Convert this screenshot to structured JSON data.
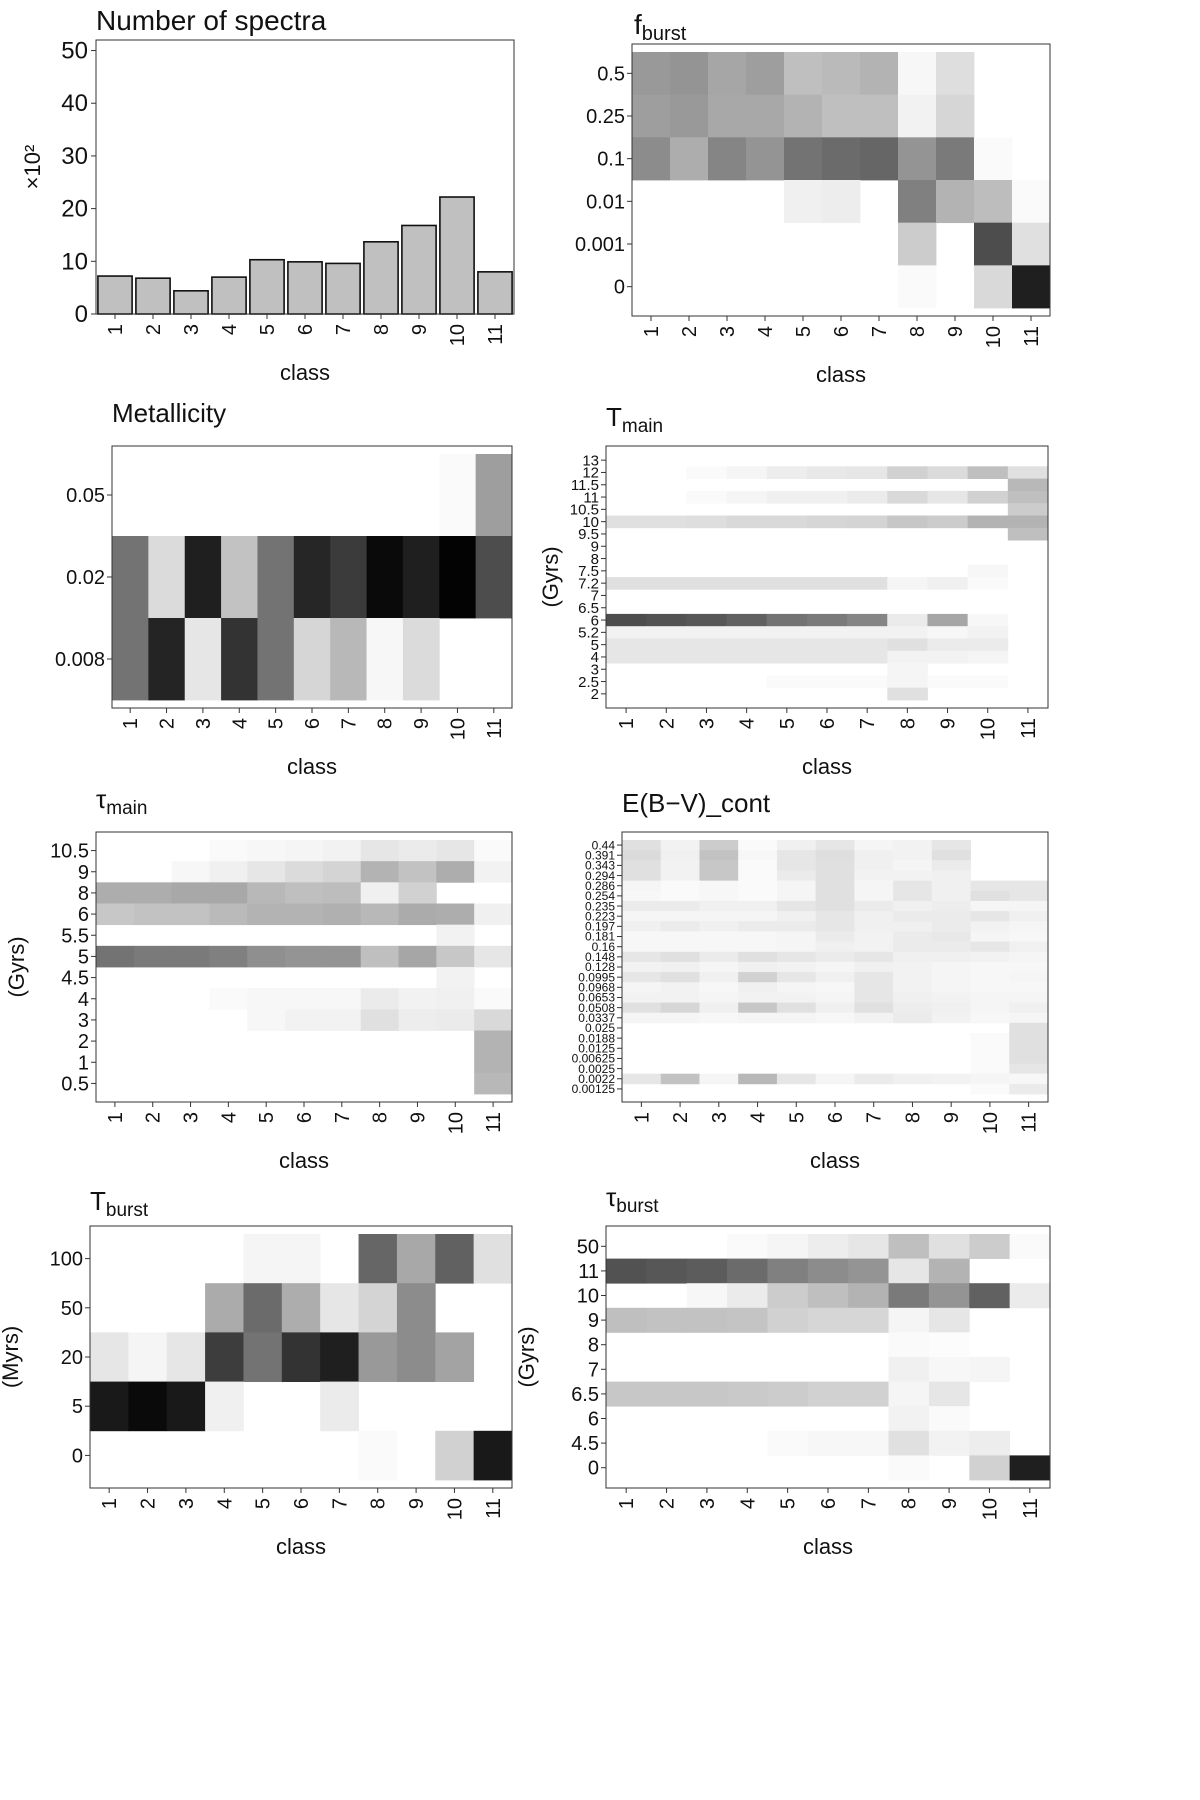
{
  "chart_data": [
    {
      "id": "num_spectra",
      "type": "bar",
      "title": "Number of spectra",
      "xlabel": "class",
      "ylabel": "×10²",
      "ylim": [
        0,
        52
      ],
      "yticks": [
        0,
        10,
        20,
        30,
        40,
        50
      ],
      "categories": [
        "1",
        "2",
        "3",
        "4",
        "5",
        "6",
        "7",
        "8",
        "9",
        "10",
        "11"
      ],
      "values": [
        7.2,
        6.8,
        4.4,
        7.0,
        10.3,
        9.9,
        9.6,
        13.7,
        16.8,
        22.2,
        8.0
      ],
      "bar_color": "#c0c0c0"
    },
    {
      "id": "f_burst",
      "type": "heatmap",
      "title": "f",
      "title_sub": "burst",
      "xlabel": "class",
      "ylabel": "",
      "categories": [
        "1",
        "2",
        "3",
        "4",
        "5",
        "6",
        "7",
        "8",
        "9",
        "10",
        "11"
      ],
      "rows": [
        "0.5",
        "0.25",
        "0.1",
        "0.01",
        "0.001",
        "0"
      ],
      "values": [
        [
          0.4,
          0.42,
          0.35,
          0.38,
          0.25,
          0.27,
          0.3,
          0.03,
          0.13,
          0.0,
          0.0
        ],
        [
          0.38,
          0.4,
          0.34,
          0.34,
          0.3,
          0.25,
          0.25,
          0.05,
          0.16,
          0.0,
          0.0
        ],
        [
          0.45,
          0.32,
          0.48,
          0.42,
          0.55,
          0.58,
          0.6,
          0.42,
          0.52,
          0.02,
          0.0
        ],
        [
          0.0,
          0.0,
          0.0,
          0.0,
          0.06,
          0.07,
          0.0,
          0.5,
          0.3,
          0.26,
          0.02
        ],
        [
          0.0,
          0.0,
          0.0,
          0.0,
          0.0,
          0.0,
          0.0,
          0.2,
          0.0,
          0.7,
          0.12
        ],
        [
          0.0,
          0.0,
          0.0,
          0.0,
          0.0,
          0.0,
          0.0,
          0.02,
          0.0,
          0.15,
          0.88
        ]
      ]
    },
    {
      "id": "metallicity",
      "type": "heatmap",
      "title": "Metallicity",
      "title_sub": "",
      "xlabel": "class",
      "ylabel": "",
      "categories": [
        "1",
        "2",
        "3",
        "4",
        "5",
        "6",
        "7",
        "8",
        "9",
        "10",
        "11"
      ],
      "rows": [
        "0.05",
        "0.02",
        "0.008"
      ],
      "values": [
        [
          0.0,
          0.0,
          0.0,
          0.0,
          0.0,
          0.0,
          0.0,
          0.0,
          0.0,
          0.02,
          0.38
        ],
        [
          0.55,
          0.14,
          0.88,
          0.24,
          0.55,
          0.85,
          0.77,
          0.96,
          0.88,
          0.99,
          0.7
        ],
        [
          0.55,
          0.86,
          0.1,
          0.8,
          0.55,
          0.16,
          0.28,
          0.03,
          0.14,
          0.0,
          0.0
        ]
      ]
    },
    {
      "id": "t_main",
      "type": "heatmap",
      "title": "T",
      "title_sub": "main",
      "xlabel": "class",
      "ylabel": "(Gyrs)",
      "categories": [
        "1",
        "2",
        "3",
        "4",
        "5",
        "6",
        "7",
        "8",
        "9",
        "10",
        "11"
      ],
      "rows": [
        "13",
        "12",
        "11.5",
        "11",
        "10.5",
        "10",
        "9.5",
        "9",
        "8",
        "7.5",
        "7.2",
        "7",
        "6.5",
        "6",
        "5.2",
        "5",
        "4",
        "3",
        "2.5",
        "2"
      ],
      "values": [
        [
          0,
          0,
          0,
          0,
          0,
          0,
          0,
          0,
          0,
          0,
          0
        ],
        [
          0,
          0,
          0.02,
          0.04,
          0.07,
          0.09,
          0.1,
          0.18,
          0.14,
          0.25,
          0.12
        ],
        [
          0,
          0,
          0,
          0,
          0,
          0,
          0,
          0,
          0,
          0,
          0.28
        ],
        [
          0,
          0,
          0.02,
          0.04,
          0.06,
          0.06,
          0.08,
          0.15,
          0.1,
          0.18,
          0.25
        ],
        [
          0,
          0,
          0,
          0,
          0,
          0,
          0,
          0,
          0,
          0,
          0.2
        ],
        [
          0.12,
          0.12,
          0.13,
          0.15,
          0.15,
          0.16,
          0.17,
          0.22,
          0.2,
          0.3,
          0.3
        ],
        [
          0,
          0,
          0,
          0,
          0,
          0,
          0,
          0,
          0,
          0,
          0.25
        ],
        [
          0,
          0,
          0,
          0,
          0,
          0,
          0,
          0,
          0,
          0,
          0
        ],
        [
          0,
          0,
          0,
          0,
          0,
          0,
          0,
          0,
          0,
          0,
          0
        ],
        [
          0,
          0,
          0,
          0,
          0,
          0,
          0,
          0,
          0,
          0.03,
          0
        ],
        [
          0.12,
          0.12,
          0.12,
          0.12,
          0.12,
          0.12,
          0.12,
          0.04,
          0.06,
          0.02,
          0
        ],
        [
          0,
          0,
          0,
          0,
          0,
          0,
          0,
          0,
          0,
          0,
          0
        ],
        [
          0,
          0,
          0,
          0,
          0,
          0,
          0,
          0,
          0,
          0,
          0
        ],
        [
          0.7,
          0.68,
          0.66,
          0.62,
          0.55,
          0.52,
          0.48,
          0.08,
          0.35,
          0.03,
          0
        ],
        [
          0.05,
          0.05,
          0.05,
          0.05,
          0.05,
          0.05,
          0.05,
          0.05,
          0.03,
          0.05,
          0
        ],
        [
          0.1,
          0.1,
          0.1,
          0.1,
          0.1,
          0.1,
          0.1,
          0.12,
          0.08,
          0.08,
          0
        ],
        [
          0.1,
          0.1,
          0.1,
          0.1,
          0.1,
          0.1,
          0.1,
          0.05,
          0.05,
          0.04,
          0
        ],
        [
          0,
          0,
          0,
          0,
          0,
          0,
          0,
          0.04,
          0,
          0,
          0
        ],
        [
          0,
          0,
          0,
          0,
          0.02,
          0.02,
          0.02,
          0.04,
          0.02,
          0.02,
          0
        ],
        [
          0,
          0,
          0,
          0,
          0,
          0,
          0,
          0.12,
          0,
          0,
          0
        ]
      ]
    },
    {
      "id": "tau_main",
      "type": "heatmap",
      "title": "τ",
      "title_sub": "main",
      "xlabel": "class",
      "ylabel": "(Gyrs)",
      "categories": [
        "1",
        "2",
        "3",
        "4",
        "5",
        "6",
        "7",
        "8",
        "9",
        "10",
        "11"
      ],
      "rows": [
        "10.5",
        "9",
        "8",
        "6",
        "5.5",
        "5",
        "4.5",
        "4",
        "3",
        "2",
        "1",
        "0.5"
      ],
      "values": [
        [
          0,
          0,
          0,
          0.02,
          0.03,
          0.04,
          0.05,
          0.1,
          0.08,
          0.1,
          0.02
        ],
        [
          0,
          0,
          0.03,
          0.06,
          0.1,
          0.14,
          0.17,
          0.3,
          0.24,
          0.32,
          0.05
        ],
        [
          0.32,
          0.32,
          0.34,
          0.34,
          0.28,
          0.25,
          0.26,
          0.06,
          0.18,
          0.0,
          0.0
        ],
        [
          0.22,
          0.24,
          0.24,
          0.27,
          0.3,
          0.3,
          0.31,
          0.28,
          0.33,
          0.32,
          0.06
        ],
        [
          0,
          0,
          0,
          0,
          0,
          0,
          0,
          0,
          0,
          0.05,
          0
        ],
        [
          0.55,
          0.52,
          0.52,
          0.5,
          0.44,
          0.42,
          0.42,
          0.25,
          0.35,
          0.22,
          0.1
        ],
        [
          0,
          0,
          0,
          0,
          0,
          0,
          0,
          0,
          0,
          0.05,
          0
        ],
        [
          0,
          0,
          0,
          0.02,
          0.03,
          0.03,
          0.03,
          0.08,
          0.05,
          0.06,
          0.02
        ],
        [
          0,
          0,
          0,
          0,
          0.03,
          0.05,
          0.05,
          0.12,
          0.07,
          0.08,
          0.15
        ],
        [
          0,
          0,
          0,
          0,
          0,
          0,
          0,
          0,
          0,
          0,
          0.3
        ],
        [
          0,
          0,
          0,
          0,
          0,
          0,
          0,
          0,
          0,
          0,
          0.3
        ],
        [
          0,
          0,
          0,
          0,
          0,
          0,
          0,
          0,
          0,
          0,
          0.28
        ]
      ]
    },
    {
      "id": "ebv_cont",
      "type": "heatmap",
      "title": "E(B−V)_cont",
      "title_sub": "",
      "xlabel": "class",
      "ylabel": "",
      "categories": [
        "1",
        "2",
        "3",
        "4",
        "5",
        "6",
        "7",
        "8",
        "9",
        "10",
        "11"
      ],
      "rows": [
        "0.44",
        "0.391",
        "0.343",
        "0.294",
        "0.286",
        "0.254",
        "0.235",
        "0.223",
        "0.197",
        "0.181",
        "0.16",
        "0.148",
        "0.128",
        "0.0995",
        "0.0968",
        "0.0653",
        "0.0508",
        "0.0337",
        "0.025",
        "0.0188",
        "0.0125",
        "0.00625",
        "0.0025",
        "0.0022",
        "0.00125"
      ],
      "values": [
        [
          0.12,
          0.05,
          0.2,
          0.02,
          0.06,
          0.1,
          0.04,
          0.05,
          0.1,
          0,
          0
        ],
        [
          0.14,
          0.06,
          0.24,
          0.03,
          0.1,
          0.13,
          0.06,
          0.05,
          0.12,
          0,
          0
        ],
        [
          0.12,
          0.05,
          0.22,
          0.02,
          0.1,
          0.12,
          0.06,
          0.04,
          0.08,
          0,
          0
        ],
        [
          0.12,
          0.05,
          0.22,
          0.02,
          0.08,
          0.12,
          0.05,
          0.05,
          0.06,
          0,
          0
        ],
        [
          0.04,
          0.02,
          0.03,
          0.02,
          0.04,
          0.12,
          0.04,
          0.1,
          0.06,
          0.1,
          0.1
        ],
        [
          0.03,
          0.02,
          0.03,
          0.02,
          0.04,
          0.12,
          0.04,
          0.1,
          0.06,
          0.12,
          0.1
        ],
        [
          0.08,
          0.08,
          0.06,
          0.06,
          0.1,
          0.12,
          0.08,
          0.06,
          0.07,
          0.04,
          0.04
        ],
        [
          0.04,
          0.04,
          0.04,
          0.04,
          0.06,
          0.1,
          0.06,
          0.08,
          0.08,
          0.1,
          0.06
        ],
        [
          0.06,
          0.08,
          0.06,
          0.08,
          0.08,
          0.1,
          0.06,
          0.06,
          0.08,
          0.05,
          0.04
        ],
        [
          0.03,
          0.03,
          0.03,
          0.03,
          0.04,
          0.08,
          0.05,
          0.08,
          0.09,
          0.04,
          0.03
        ],
        [
          0.03,
          0.03,
          0.03,
          0.03,
          0.04,
          0.06,
          0.05,
          0.08,
          0.08,
          0.1,
          0.06
        ],
        [
          0.1,
          0.12,
          0.08,
          0.12,
          0.1,
          0.08,
          0.1,
          0.06,
          0.06,
          0.05,
          0.04
        ],
        [
          0.05,
          0.06,
          0.04,
          0.06,
          0.05,
          0.04,
          0.06,
          0.05,
          0.04,
          0.03,
          0.03
        ],
        [
          0.1,
          0.12,
          0.06,
          0.18,
          0.1,
          0.06,
          0.1,
          0.05,
          0.04,
          0.03,
          0.04
        ],
        [
          0.04,
          0.05,
          0.03,
          0.06,
          0.04,
          0.03,
          0.1,
          0.05,
          0.04,
          0.03,
          0.03
        ],
        [
          0.05,
          0.05,
          0.04,
          0.05,
          0.05,
          0.04,
          0.1,
          0.06,
          0.05,
          0.04,
          0.04
        ],
        [
          0.12,
          0.16,
          0.06,
          0.22,
          0.12,
          0.06,
          0.12,
          0.07,
          0.06,
          0.04,
          0.06
        ],
        [
          0.04,
          0.04,
          0.03,
          0.04,
          0.04,
          0.03,
          0.05,
          0.08,
          0.05,
          0.03,
          0.04
        ],
        [
          0,
          0,
          0,
          0,
          0,
          0,
          0,
          0,
          0,
          0,
          0.12
        ],
        [
          0,
          0,
          0,
          0,
          0,
          0,
          0,
          0,
          0,
          0.02,
          0.12
        ],
        [
          0,
          0,
          0,
          0,
          0,
          0,
          0,
          0,
          0,
          0.02,
          0.12
        ],
        [
          0,
          0,
          0,
          0,
          0,
          0,
          0,
          0,
          0,
          0.02,
          0.12
        ],
        [
          0,
          0,
          0,
          0,
          0,
          0,
          0,
          0,
          0,
          0.02,
          0.1
        ],
        [
          0.1,
          0.24,
          0.04,
          0.28,
          0.1,
          0.04,
          0.08,
          0.06,
          0.05,
          0.04,
          0.03
        ],
        [
          0,
          0,
          0,
          0,
          0,
          0,
          0,
          0,
          0,
          0.02,
          0.08
        ]
      ]
    },
    {
      "id": "t_burst",
      "type": "heatmap",
      "title": "T",
      "title_sub": "burst",
      "xlabel": "class",
      "ylabel": "(Myrs)",
      "categories": [
        "1",
        "2",
        "3",
        "4",
        "5",
        "6",
        "7",
        "8",
        "9",
        "10",
        "11"
      ],
      "rows": [
        "100",
        "50",
        "20",
        "5",
        "0"
      ],
      "values": [
        [
          0.0,
          0.0,
          0.0,
          0.0,
          0.04,
          0.04,
          0.0,
          0.6,
          0.34,
          0.62,
          0.12
        ],
        [
          0.0,
          0.0,
          0.0,
          0.33,
          0.58,
          0.32,
          0.1,
          0.17,
          0.45,
          0.0,
          0.0
        ],
        [
          0.1,
          0.04,
          0.1,
          0.76,
          0.55,
          0.8,
          0.88,
          0.4,
          0.45,
          0.36,
          0.0
        ],
        [
          0.9,
          0.96,
          0.9,
          0.06,
          0.0,
          0.0,
          0.08,
          0.0,
          0.0,
          0.0,
          0.0
        ],
        [
          0.0,
          0.0,
          0.0,
          0.0,
          0.0,
          0.0,
          0.0,
          0.02,
          0.0,
          0.18,
          0.9
        ]
      ]
    },
    {
      "id": "tau_burst",
      "type": "heatmap",
      "title": "τ",
      "title_sub": "burst",
      "xlabel": "class",
      "ylabel": "(Gyrs)",
      "categories": [
        "1",
        "2",
        "3",
        "4",
        "5",
        "6",
        "7",
        "8",
        "9",
        "10",
        "11"
      ],
      "rows": [
        "50",
        "11",
        "10",
        "9",
        "8",
        "7",
        "6.5",
        "6",
        "4.5",
        "0"
      ],
      "values": [
        [
          0,
          0,
          0,
          0.02,
          0.04,
          0.07,
          0.1,
          0.25,
          0.12,
          0.2,
          0.02
        ],
        [
          0.68,
          0.66,
          0.64,
          0.58,
          0.5,
          0.45,
          0.42,
          0.1,
          0.3,
          0.0,
          0.0
        ],
        [
          0,
          0,
          0.03,
          0.08,
          0.2,
          0.25,
          0.3,
          0.52,
          0.42,
          0.62,
          0.08
        ],
        [
          0.25,
          0.24,
          0.24,
          0.23,
          0.18,
          0.16,
          0.16,
          0.04,
          0.1,
          0,
          0
        ],
        [
          0,
          0,
          0,
          0,
          0,
          0,
          0,
          0.02,
          0.01,
          0,
          0
        ],
        [
          0,
          0,
          0,
          0,
          0,
          0,
          0,
          0.06,
          0.03,
          0.04,
          0
        ],
        [
          0.22,
          0.22,
          0.22,
          0.21,
          0.2,
          0.18,
          0.18,
          0.04,
          0.1,
          0,
          0
        ],
        [
          0,
          0,
          0,
          0,
          0,
          0,
          0,
          0.05,
          0.02,
          0,
          0
        ],
        [
          0,
          0,
          0,
          0,
          0.02,
          0.03,
          0.03,
          0.12,
          0.05,
          0.07,
          0
        ],
        [
          0,
          0,
          0,
          0,
          0,
          0,
          0,
          0.02,
          0,
          0.18,
          0.88
        ]
      ]
    }
  ]
}
